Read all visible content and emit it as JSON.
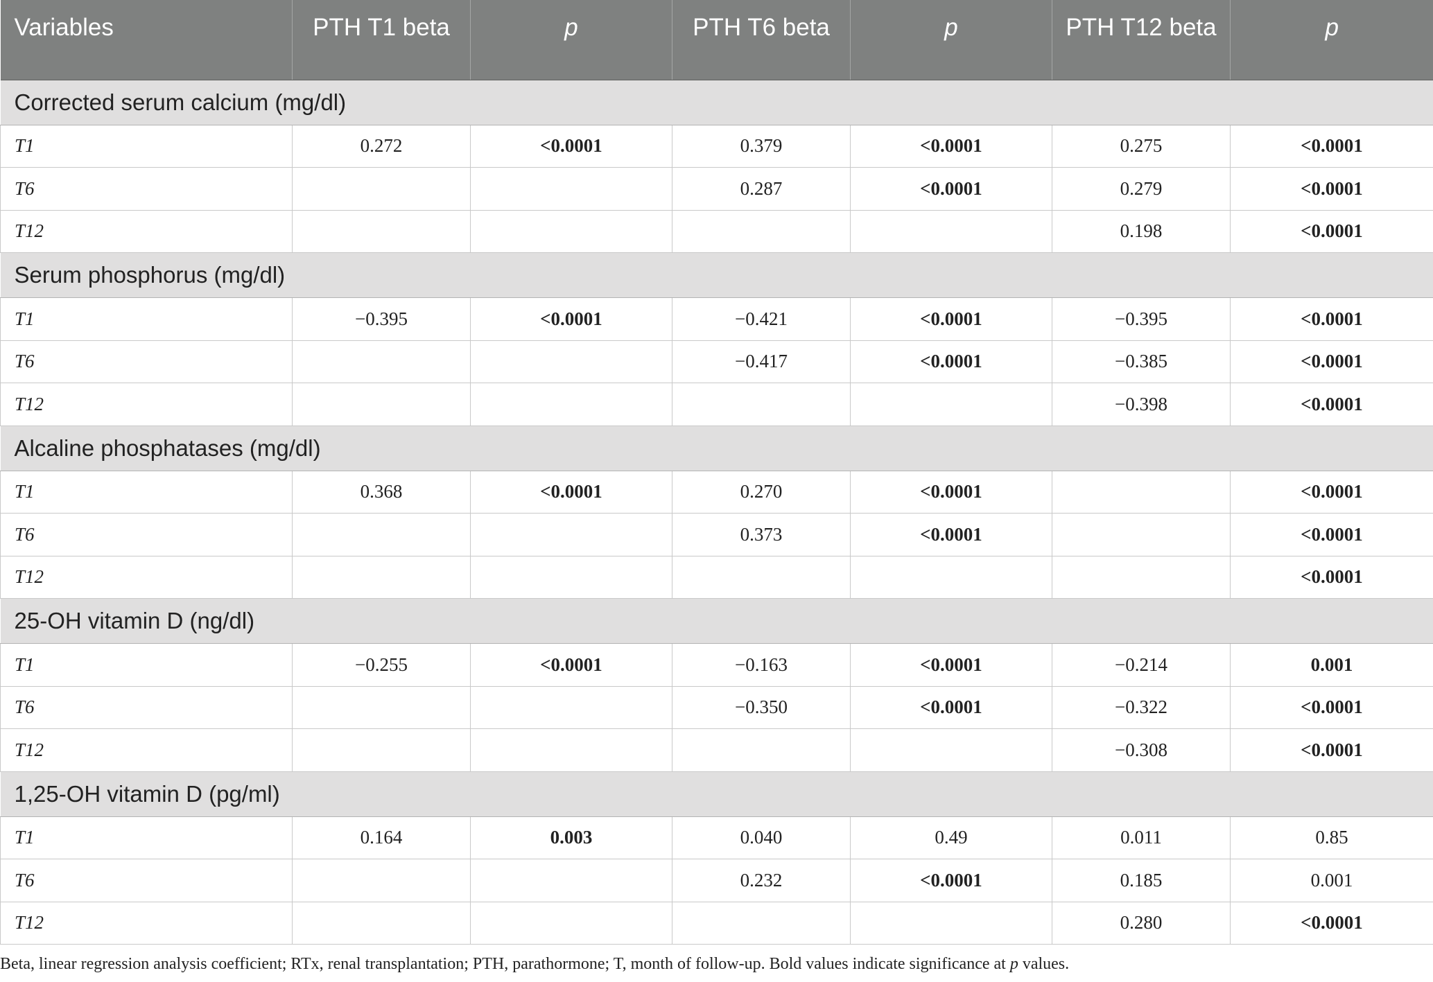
{
  "table": {
    "headers": [
      "Variables",
      "PTH T1 beta",
      "p",
      "PTH T6 beta",
      "p",
      "PTH T12 beta",
      "p"
    ],
    "groups": [
      {
        "title": "Corrected serum calcium (mg/dl)",
        "rows": [
          {
            "label": "T1",
            "cells": [
              {
                "v": "0.272"
              },
              {
                "v": "<0.0001",
                "bold": true
              },
              {
                "v": "0.379"
              },
              {
                "v": "<0.0001",
                "bold": true
              },
              {
                "v": "0.275"
              },
              {
                "v": "<0.0001",
                "bold": true
              }
            ]
          },
          {
            "label": "T6",
            "cells": [
              {
                "v": ""
              },
              {
                "v": ""
              },
              {
                "v": "0.287"
              },
              {
                "v": "<0.0001",
                "bold": true
              },
              {
                "v": "0.279"
              },
              {
                "v": "<0.0001",
                "bold": true
              }
            ]
          },
          {
            "label": "T12",
            "cells": [
              {
                "v": ""
              },
              {
                "v": ""
              },
              {
                "v": ""
              },
              {
                "v": ""
              },
              {
                "v": "0.198"
              },
              {
                "v": "<0.0001",
                "bold": true
              }
            ]
          }
        ]
      },
      {
        "title": "Serum phosphorus (mg/dl)",
        "rows": [
          {
            "label": "T1",
            "cells": [
              {
                "v": "−0.395"
              },
              {
                "v": "<0.0001",
                "bold": true
              },
              {
                "v": "−0.421"
              },
              {
                "v": "<0.0001",
                "bold": true
              },
              {
                "v": "−0.395"
              },
              {
                "v": "<0.0001",
                "bold": true
              }
            ]
          },
          {
            "label": "T6",
            "cells": [
              {
                "v": ""
              },
              {
                "v": ""
              },
              {
                "v": "−0.417"
              },
              {
                "v": "<0.0001",
                "bold": true
              },
              {
                "v": "−0.385"
              },
              {
                "v": "<0.0001",
                "bold": true
              }
            ]
          },
          {
            "label": "T12",
            "cells": [
              {
                "v": ""
              },
              {
                "v": ""
              },
              {
                "v": ""
              },
              {
                "v": ""
              },
              {
                "v": "−0.398"
              },
              {
                "v": "<0.0001",
                "bold": true
              }
            ]
          }
        ]
      },
      {
        "title": "Alcaline phosphatases (mg/dl)",
        "rows": [
          {
            "label": "T1",
            "cells": [
              {
                "v": "0.368"
              },
              {
                "v": "<0.0001",
                "bold": true
              },
              {
                "v": "0.270"
              },
              {
                "v": "<0.0001",
                "bold": true
              },
              {
                "v": ""
              },
              {
                "v": "<0.0001",
                "bold": true
              }
            ]
          },
          {
            "label": "T6",
            "cells": [
              {
                "v": ""
              },
              {
                "v": ""
              },
              {
                "v": "0.373"
              },
              {
                "v": "<0.0001",
                "bold": true
              },
              {
                "v": ""
              },
              {
                "v": "<0.0001",
                "bold": true
              }
            ]
          },
          {
            "label": "T12",
            "cells": [
              {
                "v": ""
              },
              {
                "v": ""
              },
              {
                "v": ""
              },
              {
                "v": ""
              },
              {
                "v": ""
              },
              {
                "v": "<0.0001",
                "bold": true
              }
            ]
          }
        ]
      },
      {
        "title": "25-OH vitamin D (ng/dl)",
        "rows": [
          {
            "label": "T1",
            "cells": [
              {
                "v": "−0.255"
              },
              {
                "v": "<0.0001",
                "bold": true
              },
              {
                "v": "−0.163"
              },
              {
                "v": "<0.0001",
                "bold": true
              },
              {
                "v": "−0.214"
              },
              {
                "v": "0.001",
                "bold": true
              }
            ]
          },
          {
            "label": "T6",
            "cells": [
              {
                "v": ""
              },
              {
                "v": ""
              },
              {
                "v": "−0.350"
              },
              {
                "v": "<0.0001",
                "bold": true
              },
              {
                "v": "−0.322"
              },
              {
                "v": "<0.0001",
                "bold": true
              }
            ]
          },
          {
            "label": "T12",
            "cells": [
              {
                "v": ""
              },
              {
                "v": ""
              },
              {
                "v": ""
              },
              {
                "v": ""
              },
              {
                "v": "−0.308"
              },
              {
                "v": "<0.0001",
                "bold": true
              }
            ]
          }
        ]
      },
      {
        "title": "1,25-OH vitamin D (pg/ml)",
        "rows": [
          {
            "label": "T1",
            "cells": [
              {
                "v": "0.164"
              },
              {
                "v": "0.003",
                "bold": true
              },
              {
                "v": "0.040"
              },
              {
                "v": "0.49"
              },
              {
                "v": "0.011"
              },
              {
                "v": "0.85"
              }
            ]
          },
          {
            "label": "T6",
            "cells": [
              {
                "v": ""
              },
              {
                "v": ""
              },
              {
                "v": "0.232"
              },
              {
                "v": "<0.0001",
                "bold": true
              },
              {
                "v": "0.185"
              },
              {
                "v": "0.001"
              }
            ]
          },
          {
            "label": "T12",
            "cells": [
              {
                "v": ""
              },
              {
                "v": ""
              },
              {
                "v": ""
              },
              {
                "v": ""
              },
              {
                "v": "0.280"
              },
              {
                "v": "<0.0001",
                "bold": true
              }
            ]
          }
        ]
      }
    ]
  },
  "footnote": {
    "before": "Beta, linear regression analysis coefficient; RTx, renal transplantation; PTH, parathormone; T, month of follow-up. Bold values indicate significance at ",
    "italic": "p",
    "after": " values."
  }
}
